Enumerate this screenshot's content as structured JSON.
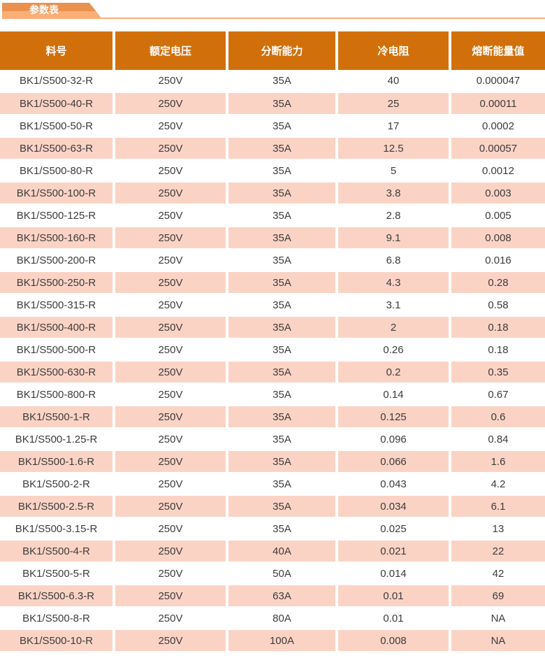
{
  "banner": {
    "tab_label": "参数表"
  },
  "colors": {
    "header_bg": "#d1700b",
    "tab_dark": "#ea9150",
    "tab_light": "#fbae75",
    "row_pink": "#fbd3c5",
    "cell_text": "#3c3c3c",
    "header_text": "#ffffff"
  },
  "table": {
    "columns": [
      "料号",
      "额定电压",
      "分断能力",
      "冷电阻",
      "熔断能量值"
    ],
    "rows": [
      [
        "BK1/S500-32-R",
        "250V",
        "35A",
        "40",
        "0.000047"
      ],
      [
        "BK1/S500-40-R",
        "250V",
        "35A",
        "25",
        "0.00011"
      ],
      [
        "BK1/S500-50-R",
        "250V",
        "35A",
        "17",
        "0.0002"
      ],
      [
        "BK1/S500-63-R",
        "250V",
        "35A",
        "12.5",
        "0.00057"
      ],
      [
        "BK1/S500-80-R",
        "250V",
        "35A",
        "5",
        "0.0012"
      ],
      [
        "BK1/S500-100-R",
        "250V",
        "35A",
        "3.8",
        "0.003"
      ],
      [
        "BK1/S500-125-R",
        "250V",
        "35A",
        "2.8",
        "0.005"
      ],
      [
        "BK1/S500-160-R",
        "250V",
        "35A",
        "9.1",
        "0.008"
      ],
      [
        "BK1/S500-200-R",
        "250V",
        "35A",
        "6.8",
        "0.016"
      ],
      [
        "BK1/S500-250-R",
        "250V",
        "35A",
        "4.3",
        "0.28"
      ],
      [
        "BK1/S500-315-R",
        "250V",
        "35A",
        "3.1",
        "0.58"
      ],
      [
        "BK1/S500-400-R",
        "250V",
        "35A",
        "2",
        "0.18"
      ],
      [
        "BK1/S500-500-R",
        "250V",
        "35A",
        "0.26",
        "0.18"
      ],
      [
        "BK1/S500-630-R",
        "250V",
        "35A",
        "0.2",
        "0.35"
      ],
      [
        "BK1/S500-800-R",
        "250V",
        "35A",
        "0.14",
        "0.67"
      ],
      [
        "BK1/S500-1-R",
        "250V",
        "35A",
        "0.125",
        "0.6"
      ],
      [
        "BK1/S500-1.25-R",
        "250V",
        "35A",
        "0.096",
        "0.84"
      ],
      [
        "BK1/S500-1.6-R",
        "250V",
        "35A",
        "0.066",
        "1.6"
      ],
      [
        "BK1/S500-2-R",
        "250V",
        "35A",
        "0.043",
        "4.2"
      ],
      [
        "BK1/S500-2.5-R",
        "250V",
        "35A",
        "0.034",
        "6.1"
      ],
      [
        "BK1/S500-3.15-R",
        "250V",
        "35A",
        "0.025",
        "13"
      ],
      [
        "BK1/S500-4-R",
        "250V",
        "40A",
        "0.021",
        "22"
      ],
      [
        "BK1/S500-5-R",
        "250V",
        "50A",
        "0.014",
        "42"
      ],
      [
        "BK1/S500-6.3-R",
        "250V",
        "63A",
        "0.01",
        "69"
      ],
      [
        "BK1/S500-8-R",
        "250V",
        "80A",
        "0.01",
        "NA"
      ],
      [
        "BK1/S500-10-R",
        "250V",
        "100A",
        "0.008",
        "NA"
      ]
    ]
  }
}
